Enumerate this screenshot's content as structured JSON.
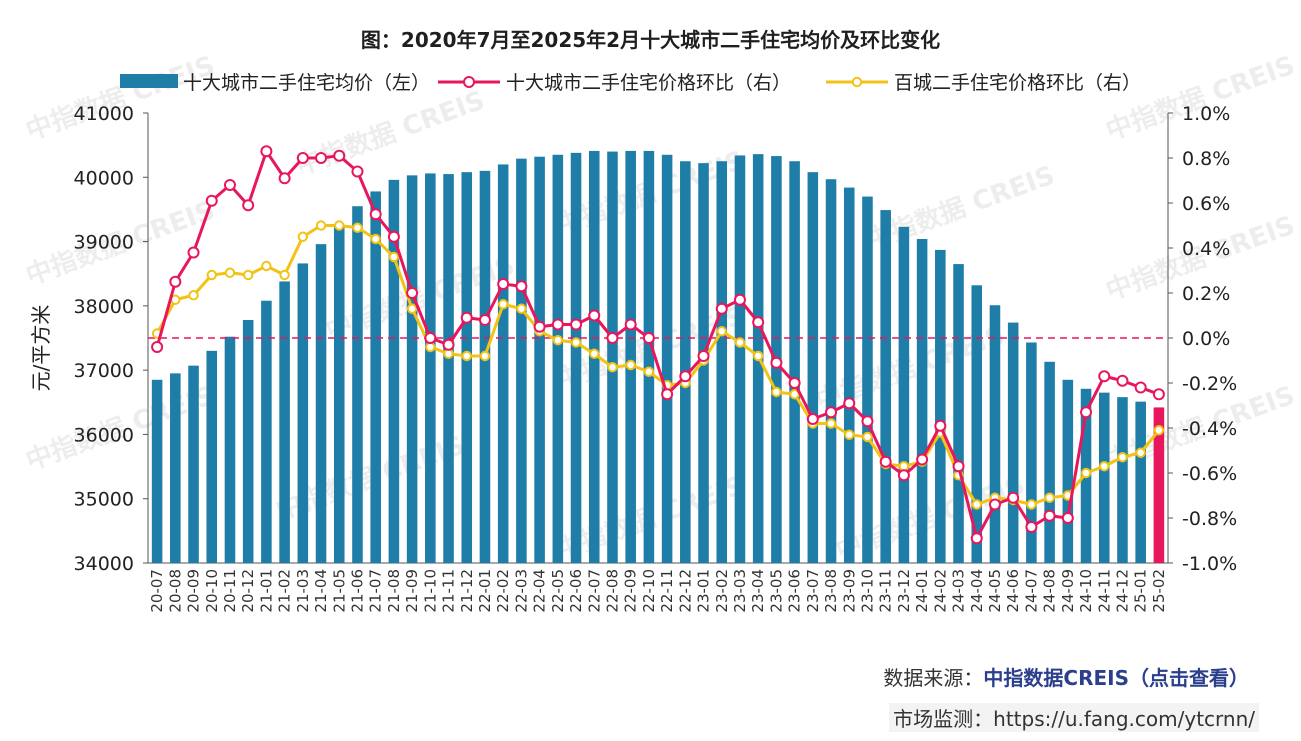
{
  "chart_data": {
    "type": "bar+line",
    "title": "图：2020年7月至2025年2月十大城市二手住宅均价及环比变化",
    "ylabel_left": "元/平方米",
    "ylim_left": [
      34000,
      41000
    ],
    "yticks_left": [
      "34000",
      "35000",
      "36000",
      "37000",
      "38000",
      "39000",
      "40000",
      "41000"
    ],
    "ylim_right": [
      -1.0,
      1.0
    ],
    "yticks_right": [
      "-1.0%",
      "-0.8%",
      "-0.6%",
      "-0.4%",
      "-0.2%",
      "0.0%",
      "0.2%",
      "0.4%",
      "0.6%",
      "0.8%",
      "1.0%"
    ],
    "categories": [
      "20-07",
      "20-08",
      "20-09",
      "20-10",
      "20-11",
      "20-12",
      "21-01",
      "21-02",
      "21-03",
      "21-04",
      "21-05",
      "21-06",
      "21-07",
      "21-08",
      "21-09",
      "21-10",
      "21-11",
      "21-12",
      "22-01",
      "22-02",
      "22-03",
      "22-04",
      "22-05",
      "22-06",
      "22-07",
      "22-08",
      "22-09",
      "22-10",
      "22-11",
      "22-12",
      "23-01",
      "23-02",
      "23-03",
      "23-04",
      "23-05",
      "23-06",
      "23-07",
      "23-08",
      "23-09",
      "23-10",
      "23-11",
      "23-12",
      "24-01",
      "24-02",
      "24-03",
      "24-04",
      "24-05",
      "24-06",
      "24-07",
      "24-08",
      "24-09",
      "24-10",
      "24-11",
      "24-12",
      "25-01",
      "25-02"
    ],
    "legend": [
      "十大城市二手住宅均价（左）",
      "十大城市二手住宅价格环比（右）",
      "百城二手住宅价格环比（右）"
    ],
    "series": [
      {
        "name": "十大城市二手住宅均价（左）",
        "type": "bar",
        "axis": "left",
        "color": "#1f7ea8",
        "last_color": "#e8175d",
        "values": [
          36850,
          36950,
          37070,
          37300,
          37520,
          37780,
          38080,
          38380,
          38660,
          38960,
          39250,
          39550,
          39780,
          39960,
          40030,
          40060,
          40050,
          40080,
          40100,
          40200,
          40290,
          40320,
          40350,
          40380,
          40410,
          40400,
          40410,
          40410,
          40350,
          40250,
          40220,
          40250,
          40340,
          40360,
          40330,
          40250,
          40080,
          39970,
          39840,
          39700,
          39490,
          39230,
          39040,
          38870,
          38650,
          38320,
          38010,
          37740,
          37430,
          37130,
          36850,
          36710,
          36650,
          36580,
          36510,
          36420
        ]
      },
      {
        "name": "十大城市二手住宅价格环比（右）",
        "type": "line",
        "axis": "right",
        "color": "#e8175d",
        "values": [
          -0.04,
          0.25,
          0.38,
          0.61,
          0.68,
          0.59,
          0.83,
          0.71,
          0.8,
          0.8,
          0.81,
          0.74,
          0.55,
          0.45,
          0.2,
          0.0,
          -0.03,
          0.09,
          0.08,
          0.24,
          0.23,
          0.05,
          0.06,
          0.06,
          0.1,
          0.0,
          0.06,
          0.0,
          -0.25,
          -0.17,
          -0.08,
          0.13,
          0.17,
          0.07,
          -0.11,
          -0.2,
          -0.36,
          -0.33,
          -0.29,
          -0.37,
          -0.55,
          -0.61,
          -0.54,
          -0.39,
          -0.57,
          -0.89,
          -0.74,
          -0.71,
          -0.84,
          -0.79,
          -0.8,
          -0.33,
          -0.17,
          -0.19,
          -0.22,
          -0.25
        ]
      },
      {
        "name": "百城二手住宅价格环比（右）",
        "type": "line",
        "axis": "right",
        "color": "#f2c314",
        "values": [
          0.02,
          0.17,
          0.19,
          0.28,
          0.29,
          0.28,
          0.32,
          0.28,
          0.45,
          0.5,
          0.5,
          0.49,
          0.44,
          0.36,
          0.13,
          -0.04,
          -0.07,
          -0.08,
          -0.08,
          0.15,
          0.13,
          0.03,
          -0.01,
          -0.02,
          -0.07,
          -0.13,
          -0.12,
          -0.15,
          -0.21,
          -0.2,
          -0.1,
          0.03,
          -0.02,
          -0.08,
          -0.24,
          -0.25,
          -0.38,
          -0.38,
          -0.43,
          -0.44,
          -0.56,
          -0.57,
          -0.55,
          -0.42,
          -0.61,
          -0.74,
          -0.71,
          -0.72,
          -0.74,
          -0.71,
          -0.7,
          -0.6,
          -0.57,
          -0.53,
          -0.51,
          -0.41
        ]
      }
    ],
    "zero_line": {
      "value": 0.0,
      "color": "#e8175d",
      "style": "dashed"
    }
  },
  "watermark": "中指数据 CREIS",
  "footer": {
    "source_label": "数据来源：",
    "source_link": "中指数据CREIS（点击查看）",
    "monitor": "市场监测：https://u.fang.com/ytcrnn/"
  }
}
